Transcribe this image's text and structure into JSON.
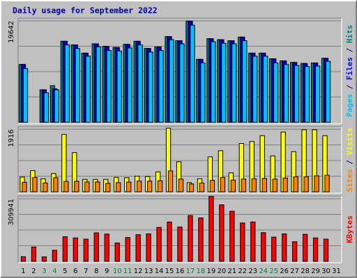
{
  "chart_data": {
    "title": "Daily usage for September 2022",
    "type": "bar",
    "days": [
      "1",
      "2",
      "3",
      "4",
      "5",
      "6",
      "7",
      "8",
      "9",
      "10",
      "11",
      "12",
      "13",
      "14",
      "15",
      "16",
      "17",
      "18",
      "19",
      "20",
      "21",
      "22",
      "23",
      "24",
      "25",
      "26",
      "27",
      "28",
      "29",
      "30",
      "31"
    ],
    "weekend_days": [
      "3",
      "4",
      "10",
      "11",
      "17",
      "18",
      "24",
      "25"
    ],
    "weekday_color": "#000000",
    "weekend_color": "#008040",
    "panels": [
      {
        "name": "hits-files-pages",
        "max_label": "19642",
        "ymax": 19642,
        "legend": [
          {
            "text": "Pages",
            "color": "#00c0ff"
          },
          {
            "text": " / ",
            "color": "#000080"
          },
          {
            "text": "Files",
            "color": "#0000ff"
          },
          {
            "text": " / ",
            "color": "#000080"
          },
          {
            "text": "Hits",
            "color": "#008080"
          }
        ],
        "series": [
          {
            "name": "Hits",
            "color": "#008080",
            "values": [
              11200,
              0,
              6300,
              7100,
              15700,
              15000,
              13400,
              15200,
              14700,
              14500,
              15100,
              15700,
              14300,
              14600,
              16600,
              15800,
              19600,
              12200,
              16200,
              16000,
              15800,
              16500,
              13400,
              13400,
              12300,
              11900,
              11600,
              11400,
              11500,
              12400,
              0
            ]
          },
          {
            "name": "Files",
            "color": "#0000cc",
            "values": [
              11200,
              0,
              6300,
              6500,
              15700,
              15000,
              13400,
              15200,
              14700,
              14500,
              15100,
              15700,
              14300,
              14600,
              16600,
              15800,
              19600,
              12200,
              16200,
              16000,
              15800,
              16500,
              13400,
              13400,
              12300,
              11900,
              11600,
              11400,
              11500,
              12400,
              0
            ]
          },
          {
            "name": "Pages",
            "color": "#00c0ff",
            "values": [
              10400,
              0,
              5700,
              6300,
              15000,
              14300,
              12800,
              14600,
              13900,
              13800,
              14400,
              15000,
              13600,
              13900,
              16000,
              15200,
              18800,
              11500,
              15600,
              15300,
              15200,
              15800,
              12800,
              12800,
              11500,
              11200,
              11000,
              10800,
              10900,
              11800,
              0
            ]
          }
        ]
      },
      {
        "name": "visits-sites",
        "max_label": "1916",
        "ymax": 1916,
        "legend": [
          {
            "text": "Sites",
            "color": "#ff8000"
          },
          {
            "text": " / ",
            "color": "#000080"
          },
          {
            "text": "Visits",
            "color": "#ffff00"
          }
        ],
        "series": [
          {
            "name": "Visits",
            "color": "#ffff00",
            "values": [
              450,
              650,
              400,
              560,
              1760,
              1200,
              380,
              380,
              380,
              440,
              430,
              480,
              470,
              610,
              1950,
              920,
              280,
              400,
              1070,
              1260,
              580,
              1480,
              1540,
              1720,
              1100,
              1830,
              1230,
              1900,
              1900,
              1720,
              0
            ]
          },
          {
            "name": "Sites",
            "color": "#ff8000",
            "values": [
              290,
              440,
              270,
              430,
              320,
              320,
              300,
              300,
              260,
              280,
              300,
              330,
              330,
              340,
              640,
              390,
              240,
              270,
              350,
              440,
              360,
              390,
              400,
              410,
              390,
              420,
              460,
              460,
              490,
              510,
              0
            ]
          }
        ]
      },
      {
        "name": "kbytes",
        "max_label": "309941",
        "ymax": 310000,
        "legend": [
          {
            "text": "KBytes",
            "color": "#ff0000"
          }
        ],
        "series": [
          {
            "name": "KBytes",
            "color": "#ff0000",
            "values": [
              23000,
              71000,
              22000,
              55000,
              122000,
              116000,
              110000,
              141000,
              135000,
              91000,
              118000,
              132000,
              136000,
              168000,
              195000,
              170000,
              227000,
              215000,
              322000,
              280000,
              248000,
              190000,
              195000,
              142000,
              120000,
              136000,
              97000,
              134000,
              116000,
              110000,
              0
            ]
          }
        ]
      }
    ]
  }
}
